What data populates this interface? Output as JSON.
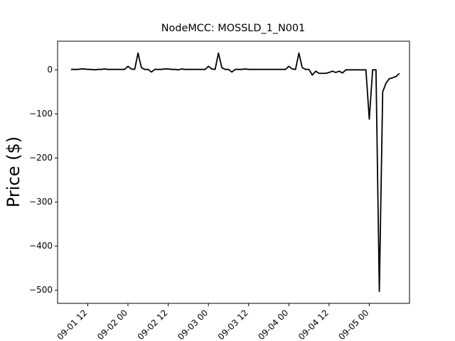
{
  "chart_data": {
    "type": "line",
    "title": "NodeMCC: MOSSLD_1_N001",
    "y_label": "Price ($)",
    "x": [
      "09-01 07",
      "09-01 08",
      "09-01 09",
      "09-01 10",
      "09-01 11",
      "09-01 12",
      "09-01 13",
      "09-01 14",
      "09-01 15",
      "09-01 16",
      "09-01 17",
      "09-01 18",
      "09-01 19",
      "09-01 20",
      "09-01 21",
      "09-01 22",
      "09-01 23",
      "09-02 00",
      "09-02 01",
      "09-02 02",
      "09-02 03",
      "09-02 04",
      "09-02 05",
      "09-02 06",
      "09-02 07",
      "09-02 08",
      "09-02 09",
      "09-02 10",
      "09-02 11",
      "09-02 12",
      "09-02 13",
      "09-02 14",
      "09-02 15",
      "09-02 16",
      "09-02 17",
      "09-02 18",
      "09-02 19",
      "09-02 20",
      "09-02 21",
      "09-02 22",
      "09-02 23",
      "09-03 00",
      "09-03 01",
      "09-03 02",
      "09-03 03",
      "09-03 04",
      "09-03 05",
      "09-03 06",
      "09-03 07",
      "09-03 08",
      "09-03 09",
      "09-03 10",
      "09-03 11",
      "09-03 12",
      "09-03 13",
      "09-03 14",
      "09-03 15",
      "09-03 16",
      "09-03 17",
      "09-03 18",
      "09-03 19",
      "09-03 20",
      "09-03 21",
      "09-03 22",
      "09-03 23",
      "09-04 00",
      "09-04 01",
      "09-04 02",
      "09-04 03",
      "09-04 04",
      "09-04 05",
      "09-04 06",
      "09-04 07",
      "09-04 08",
      "09-04 09",
      "09-04 10",
      "09-04 11",
      "09-04 12",
      "09-04 13",
      "09-04 14",
      "09-04 15",
      "09-04 16",
      "09-04 17",
      "09-04 18",
      "09-04 19",
      "09-04 20",
      "09-04 21",
      "09-04 22",
      "09-04 23",
      "09-05 00",
      "09-05 01",
      "09-05 02",
      "09-05 03",
      "09-05 04",
      "09-05 05",
      "09-05 06",
      "09-05 07",
      "09-05 08",
      "09-05 09"
    ],
    "series": [
      {
        "name": "MOSSLD_1_N001",
        "color": "#000000",
        "values": [
          1,
          1,
          1,
          2,
          2,
          1,
          1,
          0,
          1,
          1,
          2,
          1,
          1,
          1,
          1,
          1,
          1,
          8,
          2,
          1,
          38,
          5,
          1,
          1,
          -5,
          1,
          1,
          1,
          2,
          2,
          1,
          1,
          0,
          2,
          1,
          1,
          1,
          1,
          1,
          1,
          1,
          8,
          2,
          1,
          38,
          5,
          1,
          1,
          -5,
          1,
          1,
          1,
          2,
          1,
          1,
          1,
          1,
          1,
          1,
          1,
          1,
          1,
          1,
          1,
          1,
          8,
          2,
          1,
          38,
          5,
          1,
          1,
          -12,
          -3,
          -8,
          -8,
          -8,
          -6,
          -3,
          -6,
          -3,
          -7,
          0,
          0,
          0,
          0,
          0,
          0,
          0,
          -112,
          0,
          0,
          -503,
          -50,
          -30,
          -20,
          -18,
          -15,
          -8
        ]
      }
    ],
    "xlim": [
      "09-01 03",
      "09-05 12"
    ],
    "xticks": [
      "09-01 12",
      "09-02 00",
      "09-02 12",
      "09-03 00",
      "09-03 12",
      "09-04 00",
      "09-04 12",
      "09-05 00"
    ],
    "ylim": [
      -530,
      65
    ],
    "yticks": [
      0,
      {
        "value": -100,
        "label": "−100"
      },
      {
        "value": -200,
        "label": "−200"
      },
      {
        "value": -300,
        "label": "−300"
      },
      {
        "value": -400,
        "label": "−400"
      },
      {
        "value": -500,
        "label": "−500"
      }
    ],
    "grid": false
  }
}
